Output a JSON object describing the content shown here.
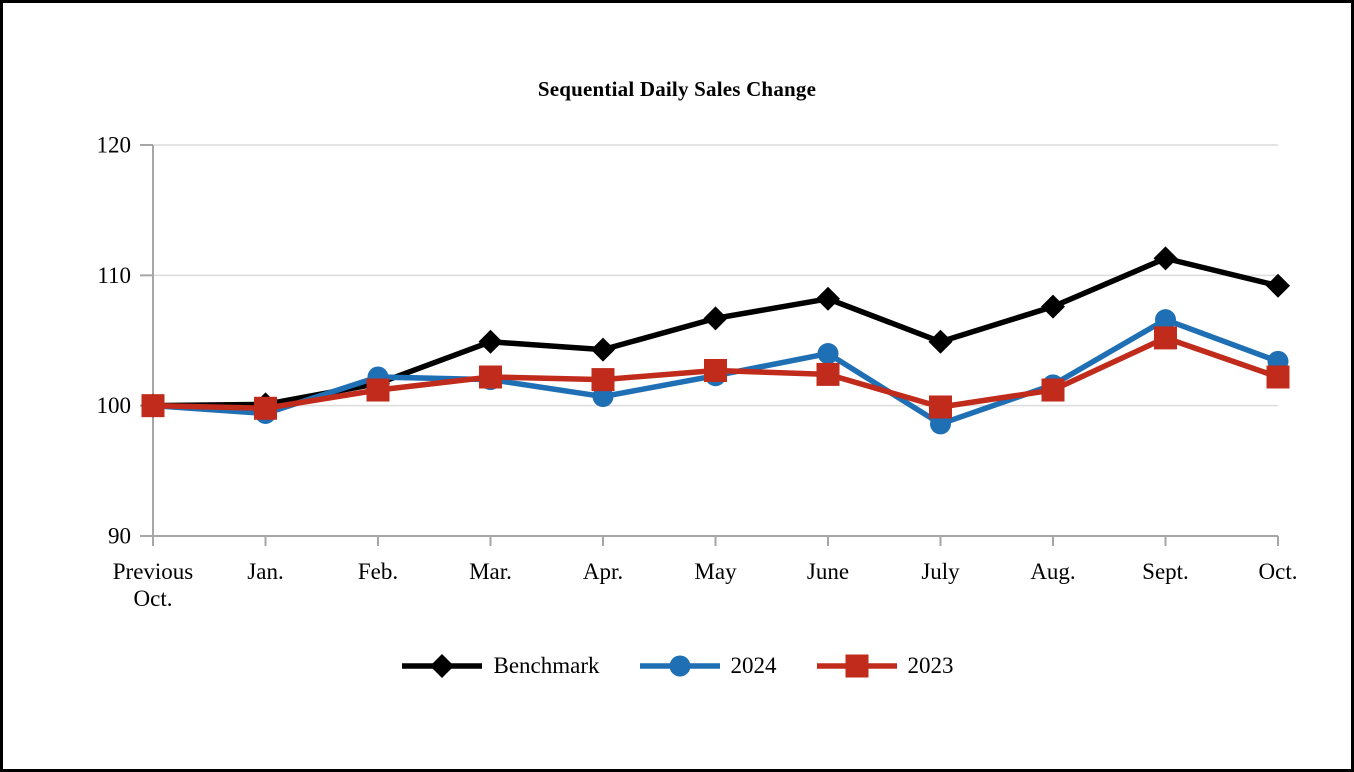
{
  "figure": {
    "background": "#FFFFFF",
    "border_color": "#000000"
  },
  "chart_data": {
    "type": "line",
    "title": "Sequential Daily Sales Change",
    "categories": [
      "Previous\nOct.",
      "Jan.",
      "Feb.",
      "Mar.",
      "Apr.",
      "May",
      "June",
      "July",
      "Aug.",
      "Sept.",
      "Oct."
    ],
    "series": [
      {
        "name": "Benchmark",
        "color": "#000000",
        "marker": "diamond",
        "values": [
          100.0,
          100.1,
          101.7,
          104.9,
          104.3,
          106.7,
          108.2,
          104.9,
          107.6,
          111.3,
          109.2
        ]
      },
      {
        "name": "2024",
        "color": "#1F6FB4",
        "marker": "circle",
        "values": [
          100.0,
          99.4,
          102.2,
          102.0,
          100.7,
          102.3,
          104.0,
          98.6,
          101.6,
          106.6,
          103.4
        ]
      },
      {
        "name": "2023",
        "color": "#C02B1B",
        "marker": "square",
        "values": [
          100.0,
          99.8,
          101.2,
          102.2,
          102.0,
          102.7,
          102.4,
          99.9,
          101.2,
          105.2,
          102.2
        ]
      }
    ],
    "ylim": [
      90,
      120
    ],
    "yticks": [
      90,
      100,
      110,
      120
    ],
    "grid": true,
    "legend_position": "bottom",
    "axis_color": "#A6A6A6",
    "gridline_color": "#DCDCDC",
    "tick_label_color": "#000000"
  }
}
